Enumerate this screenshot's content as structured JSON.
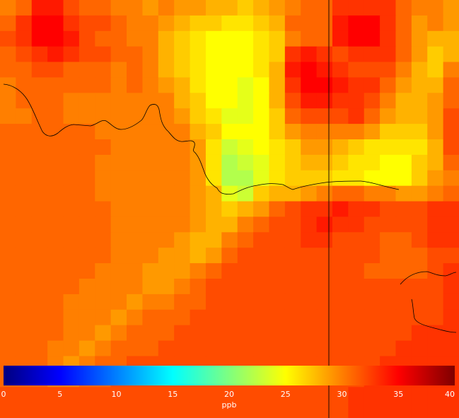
{
  "map": {
    "grid": {
      "cols": 29,
      "rows": 27,
      "values": [
        [
          30,
          31,
          34,
          34,
          32,
          31,
          31,
          30,
          30,
          29,
          30,
          29,
          29,
          28,
          28,
          27,
          28,
          29,
          30,
          31,
          31,
          33,
          33,
          33,
          33,
          31,
          30,
          30,
          29
        ],
        [
          31,
          33,
          35,
          35,
          33,
          32,
          32,
          31,
          30,
          30,
          29,
          28,
          27,
          27,
          26,
          26,
          27,
          28,
          31,
          31,
          31,
          34,
          35,
          35,
          33,
          31,
          29,
          30,
          29
        ],
        [
          32,
          33,
          35,
          35,
          34,
          32,
          31,
          31,
          30,
          30,
          28,
          27,
          26,
          25,
          25,
          25,
          26,
          27,
          30,
          31,
          31,
          34,
          35,
          35,
          33,
          31,
          29,
          28,
          28
        ],
        [
          31,
          32,
          33,
          34,
          33,
          32,
          32,
          31,
          31,
          30,
          28,
          27,
          26,
          25,
          25,
          25,
          26,
          27,
          33,
          34,
          33,
          32,
          33,
          33,
          33,
          31,
          29,
          27,
          28
        ],
        [
          31,
          31,
          32,
          32,
          31,
          31,
          31,
          30,
          31,
          30,
          28,
          27,
          26,
          25,
          25,
          25,
          26,
          28,
          34,
          35,
          34,
          33,
          32,
          32,
          32,
          30,
          28,
          27,
          30
        ],
        [
          30,
          31,
          31,
          31,
          31,
          31,
          31,
          30,
          31,
          30,
          29,
          28,
          26,
          25,
          25,
          24,
          25,
          28,
          33,
          35,
          35,
          34,
          33,
          33,
          31,
          29,
          28,
          28,
          31
        ],
        [
          30,
          31,
          31,
          31,
          30,
          30,
          30,
          30,
          30,
          30,
          30,
          28,
          27,
          25,
          25,
          24,
          25,
          28,
          32,
          34,
          34,
          33,
          33,
          32,
          30,
          28,
          28,
          29,
          31
        ],
        [
          30,
          30,
          31,
          31,
          30,
          30,
          30,
          30,
          30,
          30,
          30,
          29,
          27,
          26,
          24,
          24,
          25,
          27,
          31,
          32,
          32,
          32,
          33,
          31,
          29,
          28,
          28,
          29,
          32
        ],
        [
          31,
          31,
          31,
          31,
          31,
          31,
          30,
          30,
          30,
          30,
          30,
          30,
          28,
          27,
          25,
          25,
          25,
          27,
          29,
          30,
          30,
          30,
          30,
          29,
          27,
          27,
          27,
          29,
          32
        ],
        [
          31,
          31,
          31,
          31,
          31,
          31,
          31,
          30,
          30,
          30,
          30,
          30,
          29,
          26,
          23,
          24,
          25,
          26,
          27,
          29,
          29,
          28,
          27,
          26,
          26,
          26,
          26,
          28,
          32
        ],
        [
          31,
          31,
          31,
          31,
          31,
          31,
          30,
          30,
          30,
          30,
          30,
          30,
          29,
          26,
          22,
          23,
          24,
          26,
          27,
          28,
          28,
          27,
          26,
          26,
          25,
          25,
          27,
          28,
          31
        ],
        [
          31,
          31,
          31,
          31,
          31,
          31,
          30,
          30,
          30,
          30,
          30,
          30,
          29,
          26,
          22,
          22,
          24,
          26,
          27,
          27,
          27,
          26,
          26,
          25,
          25,
          25,
          27,
          29,
          30
        ],
        [
          31,
          31,
          31,
          31,
          31,
          31,
          30,
          30,
          30,
          30,
          30,
          30,
          29,
          28,
          24,
          23,
          27,
          28,
          28,
          29,
          30,
          31,
          31,
          30,
          30,
          29,
          29,
          30,
          31
        ],
        [
          31,
          31,
          31,
          31,
          31,
          31,
          31,
          30,
          30,
          30,
          30,
          30,
          29,
          28,
          27,
          28,
          29,
          31,
          32,
          33,
          33,
          34,
          33,
          33,
          32,
          32,
          32,
          33,
          33
        ],
        [
          31,
          31,
          31,
          31,
          31,
          31,
          31,
          30,
          30,
          30,
          30,
          30,
          29,
          28,
          28,
          30,
          31,
          32,
          32,
          33,
          34,
          33,
          33,
          32,
          32,
          32,
          32,
          33,
          33
        ],
        [
          31,
          31,
          31,
          31,
          31,
          31,
          31,
          30,
          30,
          30,
          30,
          29,
          28,
          28,
          30,
          31,
          32,
          32,
          32,
          33,
          33,
          32,
          32,
          32,
          31,
          31,
          32,
          33,
          33
        ],
        [
          31,
          31,
          31,
          31,
          31,
          31,
          31,
          30,
          30,
          30,
          29,
          29,
          28,
          29,
          31,
          32,
          32,
          32,
          32,
          32,
          32,
          32,
          32,
          32,
          31,
          31,
          31,
          32,
          32
        ],
        [
          31,
          31,
          31,
          31,
          31,
          31,
          30,
          30,
          30,
          29,
          29,
          29,
          30,
          31,
          32,
          32,
          32,
          32,
          32,
          32,
          32,
          32,
          32,
          31,
          31,
          31,
          31,
          32,
          33
        ],
        [
          31,
          31,
          31,
          31,
          31,
          30,
          30,
          30,
          30,
          29,
          29,
          30,
          31,
          32,
          32,
          32,
          32,
          32,
          32,
          32,
          32,
          32,
          32,
          32,
          32,
          32,
          32,
          32,
          33
        ],
        [
          31,
          31,
          31,
          31,
          30,
          30,
          30,
          30,
          29,
          30,
          30,
          31,
          31,
          32,
          32,
          32,
          32,
          32,
          32,
          32,
          32,
          32,
          32,
          32,
          32,
          32,
          32,
          32,
          33
        ],
        [
          31,
          31,
          31,
          31,
          30,
          30,
          30,
          29,
          30,
          31,
          31,
          31,
          32,
          32,
          32,
          32,
          32,
          32,
          32,
          32,
          32,
          32,
          32,
          32,
          32,
          32,
          32,
          32,
          33
        ],
        [
          31,
          31,
          31,
          31,
          30,
          30,
          29,
          30,
          31,
          31,
          31,
          32,
          32,
          32,
          32,
          32,
          32,
          32,
          32,
          32,
          32,
          32,
          32,
          32,
          32,
          32,
          33,
          33,
          33
        ],
        [
          31,
          31,
          31,
          30,
          30,
          29,
          30,
          31,
          31,
          31,
          32,
          32,
          32,
          32,
          32,
          32,
          32,
          32,
          32,
          32,
          32,
          32,
          32,
          32,
          32,
          33,
          33,
          33,
          33
        ],
        [
          31,
          31,
          31,
          30,
          29,
          30,
          31,
          31,
          32,
          32,
          32,
          32,
          32,
          32,
          32,
          32,
          32,
          32,
          32,
          32,
          32,
          32,
          32,
          32,
          33,
          33,
          33,
          33,
          33
        ],
        [
          31,
          31,
          31,
          30,
          30,
          31,
          31,
          32,
          32,
          32,
          32,
          32,
          32,
          32,
          32,
          32,
          32,
          32,
          32,
          32,
          32,
          32,
          32,
          33,
          33,
          33,
          33,
          33,
          33
        ],
        [
          32,
          32,
          32,
          32,
          32,
          32,
          32,
          32,
          32,
          32,
          32,
          32,
          32,
          32,
          32,
          32,
          32,
          32,
          32,
          32,
          32,
          32,
          33,
          33,
          33,
          33,
          33,
          33,
          33
        ],
        [
          32,
          32,
          32,
          32,
          32,
          32,
          32,
          32,
          32,
          32,
          32,
          32,
          32,
          32,
          32,
          32,
          32,
          32,
          32,
          32,
          32,
          32,
          33,
          33,
          33,
          33,
          33,
          33,
          33
        ]
      ]
    },
    "colorbar": {
      "min": 0,
      "max": 40,
      "ticks": [
        "0",
        "5",
        "10",
        "15",
        "20",
        "25",
        "30",
        "35",
        "40"
      ],
      "unit": "ppb",
      "colormap": "jet",
      "colors": [
        "#00007f",
        "#0000ff",
        "#007fff",
        "#00ffff",
        "#7fff7f",
        "#ffff00",
        "#ff7f00",
        "#ff0000",
        "#7f0000"
      ]
    },
    "colors": {
      "boundary": "#000000",
      "tick_text": "#ffffff"
    }
  }
}
